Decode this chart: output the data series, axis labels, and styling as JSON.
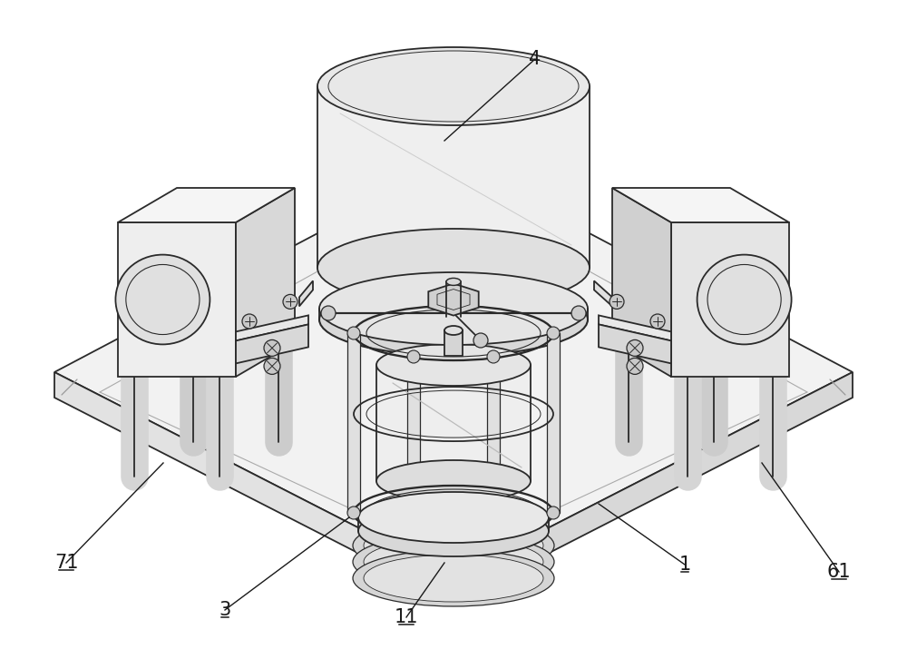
{
  "bg_color": "#ffffff",
  "line_color": "#2a2a2a",
  "line_width": 1.3,
  "label_fontsize": 15,
  "label_color": "#1a1a1a",
  "figsize": [
    10.0,
    7.15
  ],
  "dpi": 100
}
